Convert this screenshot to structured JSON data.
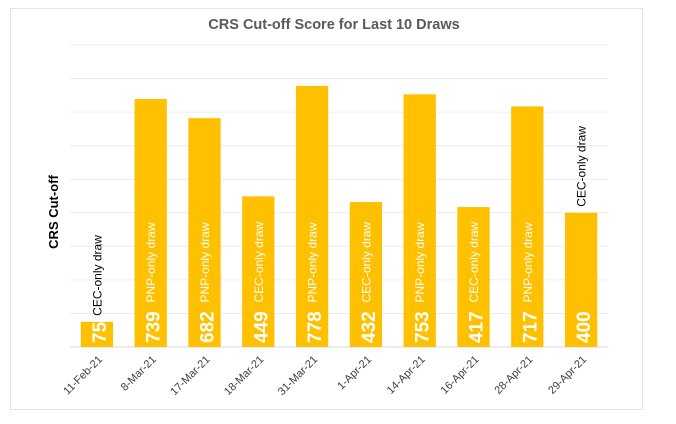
{
  "chart_data": {
    "type": "bar",
    "title": "CRS Cut-off Score for Last 10 Draws",
    "ylabel": "CRS Cut-off",
    "xlabel": "",
    "ylim": [
      0,
      900
    ],
    "grid": true,
    "legend": "none",
    "bar_color": "#FFC000",
    "value_label_color": "#ffffff",
    "categories": [
      "11-Feb-21",
      "8-Mar-21",
      "17-Mar-21",
      "18-Mar-21",
      "31-Mar-21",
      "1-Apr-21",
      "14-Apr-21",
      "16-Apr-21",
      "28-Apr-21",
      "29-Apr-21"
    ],
    "values": [
      75,
      739,
      682,
      449,
      778,
      432,
      753,
      417,
      717,
      400
    ],
    "annotations": [
      "CEC-only draw",
      "PNP-only draw",
      "PNP-only draw",
      "CEC-only draw",
      "PNP-only draw",
      "CEC-only draw",
      "PNP-only draw",
      "CEC-only draw",
      "PNP-only draw",
      "CEC-only draw"
    ]
  }
}
